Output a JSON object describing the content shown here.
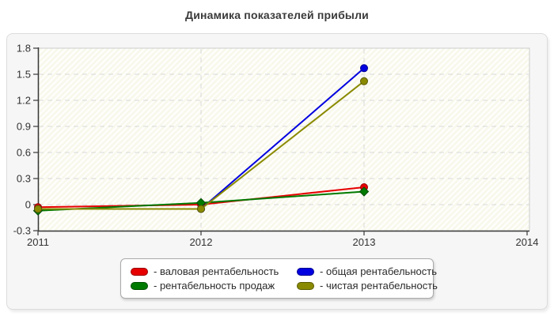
{
  "page": {
    "title": "Динамика показателей прибыли"
  },
  "chart_data": {
    "type": "line",
    "title": "Динамика показателей прибыли",
    "x_categories": [
      "2011",
      "2012",
      "2013",
      "2014"
    ],
    "series": [
      {
        "name": "валовая рентабельность",
        "color": "#e60000",
        "edge": "#990000",
        "marker": "circle",
        "x": [
          "2011",
          "2012",
          "2013"
        ],
        "values": [
          -0.03,
          0.0,
          0.2
        ]
      },
      {
        "name": "общая рентабельность",
        "color": "#0000e0",
        "edge": "#000090",
        "marker": "circle",
        "x": [
          "2011",
          "2012",
          "2013"
        ],
        "values": [
          -0.05,
          -0.05,
          1.57
        ]
      },
      {
        "name": "рентабельность продаж",
        "color": "#007a00",
        "edge": "#004d00",
        "marker": "diamond",
        "x": [
          "2011",
          "2012",
          "2013"
        ],
        "values": [
          -0.07,
          0.02,
          0.15
        ]
      },
      {
        "name": "чистая рентабельность",
        "color": "#8a8a00",
        "edge": "#5a5a00",
        "marker": "circle",
        "x": [
          "2011",
          "2012",
          "2013"
        ],
        "values": [
          -0.05,
          -0.05,
          1.42
        ]
      }
    ],
    "ylim": [
      -0.3,
      1.8
    ],
    "yticks": [
      1.8,
      1.5,
      1.2,
      0.9,
      0.6,
      0.3,
      0,
      -0.3
    ],
    "ytick_labels": [
      "1.8",
      "1.5",
      "1.2",
      "0.9",
      "0.6",
      "0.3",
      "0",
      "-0.3"
    ],
    "grid": "dashed",
    "plot_bg": "#f8f8ec",
    "grid_color": "#d9d9d9",
    "axis_color": "#3a3a3a",
    "legend_position": "bottom-center"
  },
  "legend": {
    "items": [
      {
        "label": "- валовая рентабельность",
        "color": "#e60000",
        "edge": "#990000"
      },
      {
        "label": "- общая рентабельность",
        "color": "#0000e0",
        "edge": "#000090"
      },
      {
        "label": "- рентабельность продаж",
        "color": "#007a00",
        "edge": "#004d00"
      },
      {
        "label": "- чистая рентабельность",
        "color": "#8a8a00",
        "edge": "#5a5a00"
      }
    ]
  }
}
